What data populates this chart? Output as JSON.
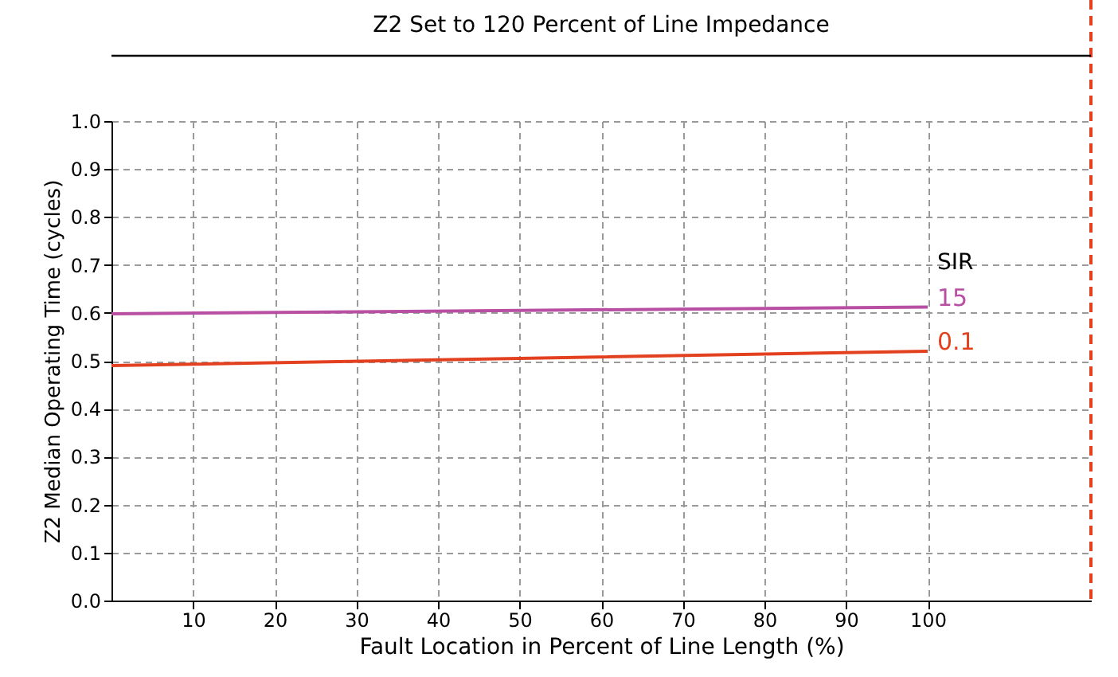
{
  "chart_data": {
    "type": "line",
    "xlabel": "Fault Location in Percent of Line Length (%)",
    "ylabel": "Z2 Median Operating Time (cycles)",
    "legend_title": "SIR",
    "annotations": [
      "Z2 Set to 120 Percent of Line Impedance"
    ],
    "x": [
      0,
      50,
      100
    ],
    "series": [
      {
        "name": "15",
        "color": "#b94fa3",
        "values": [
          0.598,
          0.605,
          0.612
        ]
      },
      {
        "name": "0.1",
        "color": "#e2401e",
        "values": [
          0.49,
          0.505,
          0.52
        ]
      }
    ],
    "xlim": [
      0,
      120
    ],
    "xticks": [
      10,
      20,
      30,
      40,
      50,
      60,
      70,
      80,
      90,
      100
    ],
    "ylim": [
      0,
      1.0
    ],
    "yticks": [
      {
        "value": 0,
        "label": "0.0"
      },
      0.1,
      0.2,
      0.3,
      0.4,
      0.5,
      0.6,
      0.7,
      0.8,
      0.9,
      {
        "value": 1,
        "label": "1.0"
      }
    ],
    "ref_lines": [
      {
        "axis": "x",
        "value": 120,
        "color": "#e2401e",
        "line_style": "dashed"
      }
    ],
    "grid": true,
    "legend": false,
    "line_style": "solid",
    "marker": "none"
  }
}
